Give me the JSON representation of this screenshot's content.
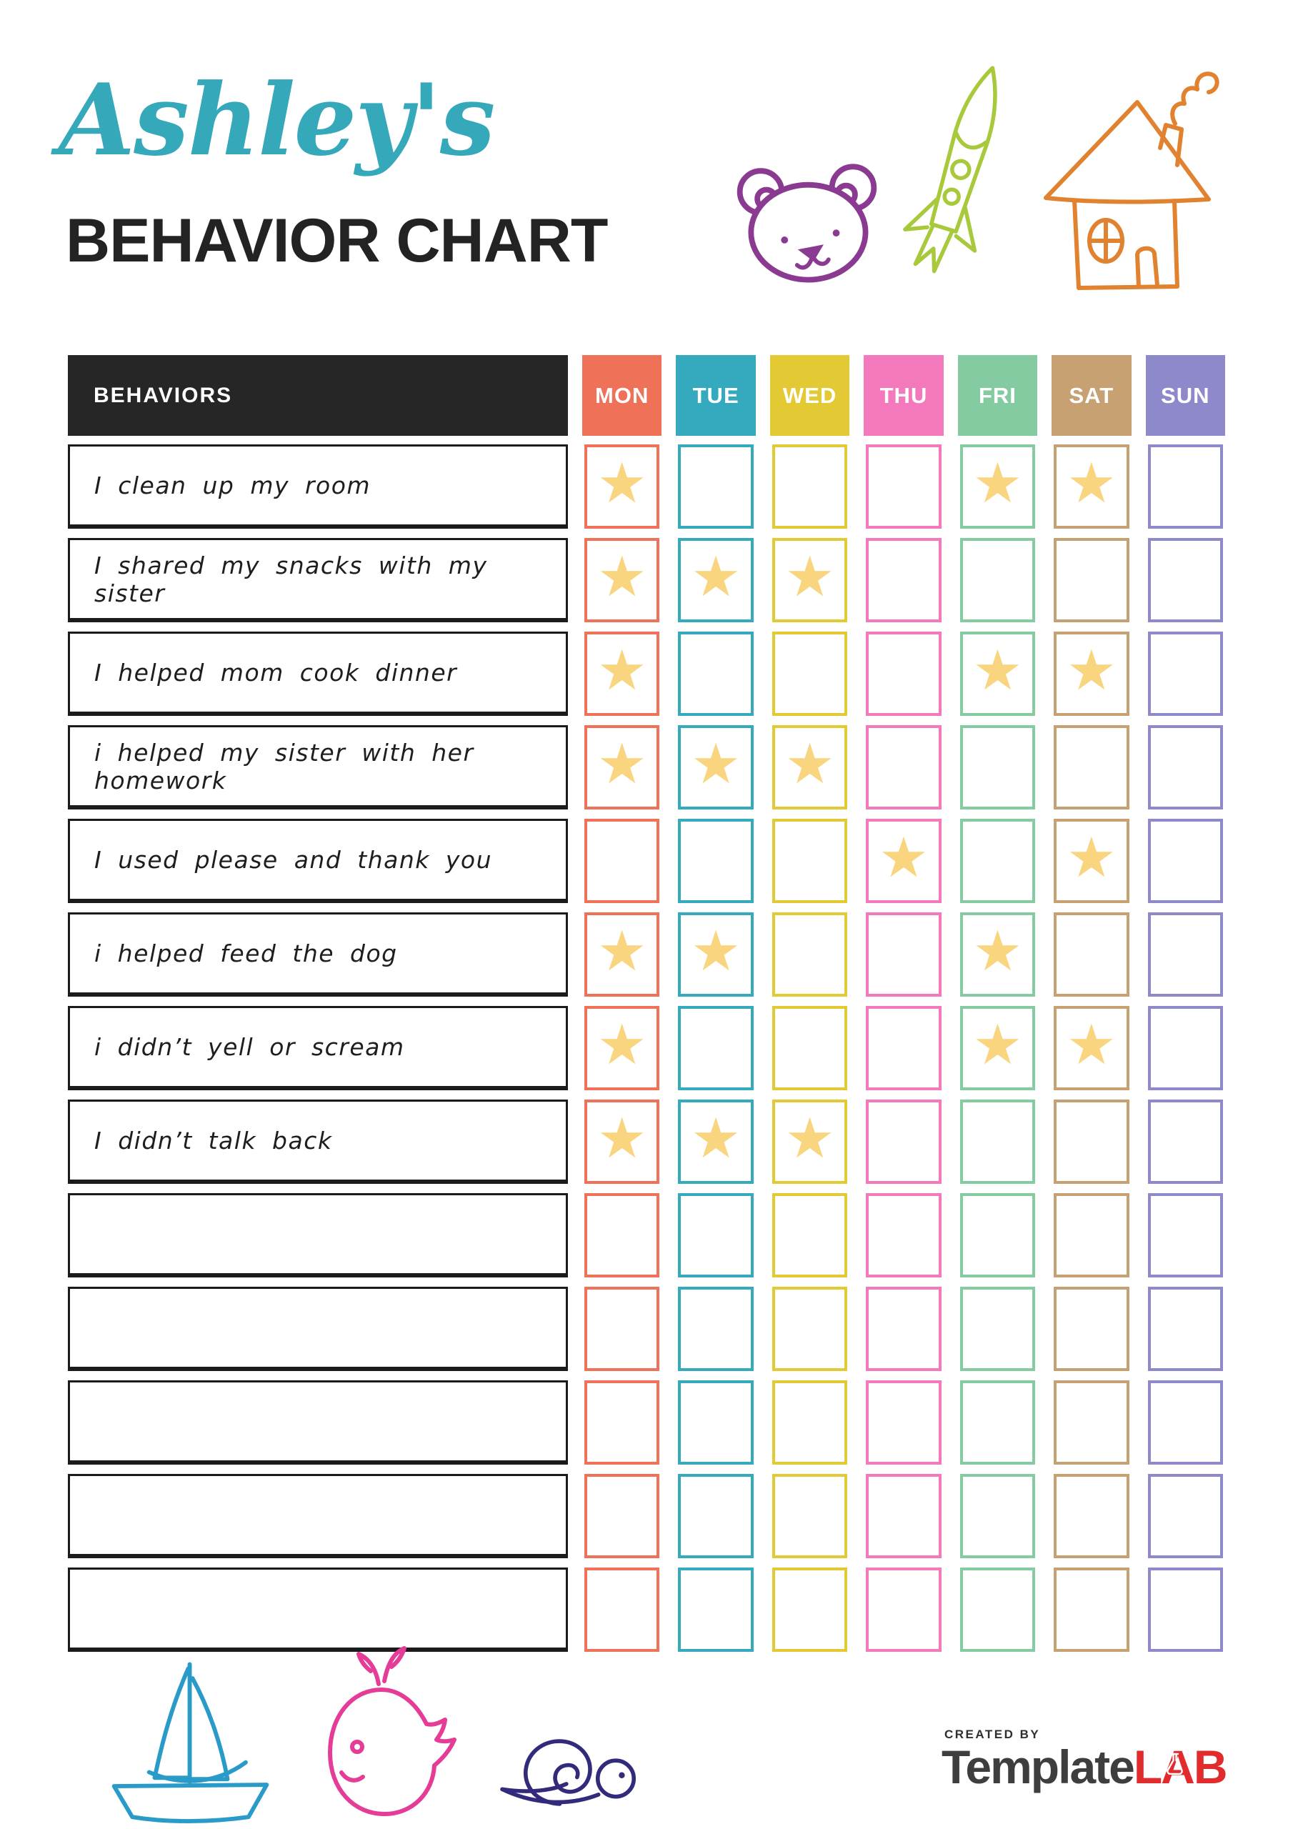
{
  "title": {
    "name": "Ashley's",
    "main": "BEHAVIOR CHART"
  },
  "table": {
    "behaviors_header": "BEHAVIORS",
    "days": [
      {
        "label": "MON",
        "color": "#EE7158"
      },
      {
        "label": "TUE",
        "color": "#35A9BD"
      },
      {
        "label": "WED",
        "color": "#E3C934"
      },
      {
        "label": "THU",
        "color": "#F378BC"
      },
      {
        "label": "FRI",
        "color": "#85CBA1"
      },
      {
        "label": "SAT",
        "color": "#C8A172"
      },
      {
        "label": "SUN",
        "color": "#8D89CA"
      }
    ],
    "rows": [
      {
        "behavior": "I clean up my room",
        "stars": [
          "MON",
          "FRI",
          "SAT"
        ]
      },
      {
        "behavior": "I shared my snacks with my sister",
        "stars": [
          "MON",
          "TUE",
          "WED"
        ]
      },
      {
        "behavior": "I helped mom cook dinner",
        "stars": [
          "MON",
          "FRI",
          "SAT"
        ]
      },
      {
        "behavior": "i helped my sister with her homework",
        "stars": [
          "MON",
          "TUE",
          "WED"
        ]
      },
      {
        "behavior": "I used please and thank you",
        "stars": [
          "THU",
          "SAT"
        ]
      },
      {
        "behavior": "i helped feed the dog",
        "stars": [
          "MON",
          "TUE",
          "FRI"
        ]
      },
      {
        "behavior": "i didn’t yell or scream",
        "stars": [
          "MON",
          "FRI",
          "SAT"
        ]
      },
      {
        "behavior": "I didn’t talk back",
        "stars": [
          "MON",
          "TUE",
          "WED"
        ]
      },
      {
        "behavior": "",
        "stars": []
      },
      {
        "behavior": "",
        "stars": []
      },
      {
        "behavior": "",
        "stars": []
      },
      {
        "behavior": "",
        "stars": []
      },
      {
        "behavior": "",
        "stars": []
      }
    ]
  },
  "footer": {
    "credit": "CREATED BY",
    "brand_dark": "Template",
    "brand_red": "LAB"
  },
  "icons": {
    "star_glyph": "★"
  },
  "colors": {
    "title_teal": "#35A8B9",
    "ink": "#232323",
    "table_header_bg": "#262626",
    "row_border": "#1B1B1B",
    "star": "#F8D57E",
    "bear": "#8A3A90",
    "rocket": "#A8C93B",
    "house": "#E0822F",
    "sailboat": "#2A9BC8",
    "whale": "#E43C97",
    "snail": "#322B7C",
    "brand_dark": "#3E3E3E",
    "brand_red": "#E12B2C"
  }
}
